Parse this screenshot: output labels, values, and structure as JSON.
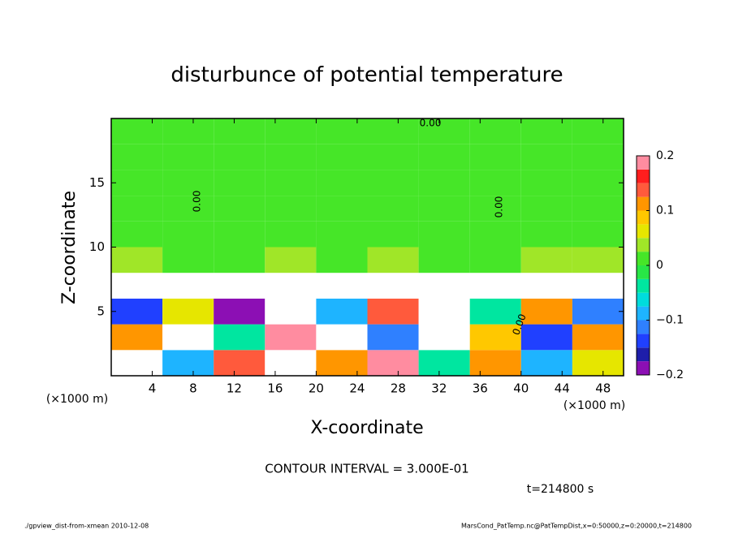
{
  "chart_data": {
    "type": "heatmap",
    "title": "disturbunce of potential temperature",
    "xlabel": "X-coordinate",
    "ylabel": "Z-coordinate",
    "xunit": "(×1000 m)",
    "yunit": "(×1000 m)",
    "xlim": [
      0,
      50
    ],
    "ylim": [
      0,
      20
    ],
    "xticks": [
      4,
      8,
      12,
      16,
      20,
      24,
      28,
      32,
      36,
      40,
      44,
      48
    ],
    "yticks": [
      5,
      10,
      15
    ],
    "x_edges": [
      0,
      5,
      10,
      15,
      20,
      25,
      30,
      35,
      40,
      45,
      50
    ],
    "y_edges": [
      0,
      2,
      4,
      6,
      8,
      10,
      12,
      14,
      16,
      18,
      20
    ],
    "z": [
      [
        0.25,
        -0.1,
        0.15,
        0.3,
        0.12,
        0.2,
        -0.05,
        0.1,
        -0.08,
        0.05
      ],
      [
        0.1,
        0.25,
        -0.05,
        0.18,
        0.3,
        -0.12,
        0.22,
        0.08,
        -0.15,
        0.12
      ],
      [
        -0.15,
        0.05,
        -0.18,
        0.25,
        -0.1,
        0.15,
        0.3,
        -0.05,
        0.1,
        -0.12
      ],
      [
        0.3,
        0.3,
        0.3,
        0.3,
        0.3,
        0.3,
        0.3,
        0.3,
        0.3,
        0.3
      ],
      [
        0.03,
        0.02,
        0.02,
        0.03,
        0.02,
        0.03,
        0.02,
        0.02,
        0.03,
        0.03
      ],
      [
        0.02,
        0.01,
        0.02,
        0.0,
        0.01,
        0.01,
        0.02,
        0.02,
        0.0,
        0.01
      ],
      [
        0.02,
        0.02,
        0.01,
        0.02,
        0.0,
        0.02,
        0.02,
        0.02,
        0.01,
        0.01
      ],
      [
        0.01,
        0.02,
        0.02,
        0.02,
        0.0,
        0.02,
        0.02,
        0.02,
        0.0,
        0.0
      ],
      [
        0.01,
        0.01,
        0.02,
        0.02,
        0.02,
        0.02,
        0.02,
        0.02,
        0.02,
        0.02
      ],
      [
        0.02,
        0.02,
        0.02,
        0.02,
        0.02,
        0.02,
        0.02,
        0.02,
        0.02,
        0.02
      ]
    ],
    "colorbar": {
      "lim": [
        -0.2,
        0.2
      ],
      "ticks": [
        {
          "value": -0.2,
          "label": "−0.2"
        },
        {
          "value": -0.1,
          "label": "−0.1"
        },
        0,
        0.1,
        0.2
      ],
      "colors": [
        "#8c0fb4",
        "#1e1eaa",
        "#2040ff",
        "#2f80ff",
        "#1eb4ff",
        "#00dcdc",
        "#00e6a0",
        "#28e646",
        "#46e628",
        "#a0e628",
        "#e6e600",
        "#ffc800",
        "#ff9600",
        "#ff5a3c",
        "#ff1e1e",
        "#ff8ca0"
      ],
      "over_color": "#ffffff",
      "under_color": "#ffffff"
    },
    "contour_labels": [
      "0.00",
      "0.00",
      "0.00",
      "0.00"
    ],
    "contour_interval": "CONTOUR INTERVAL = 3.000E-01",
    "time": "t=214800 s",
    "footer_left": "./gpview_dist-from-xmean  2010-12-08",
    "footer_right": "MarsCond_PatTemp.nc@PatTempDist,x=0:50000,z=0:20000,t=214800"
  }
}
